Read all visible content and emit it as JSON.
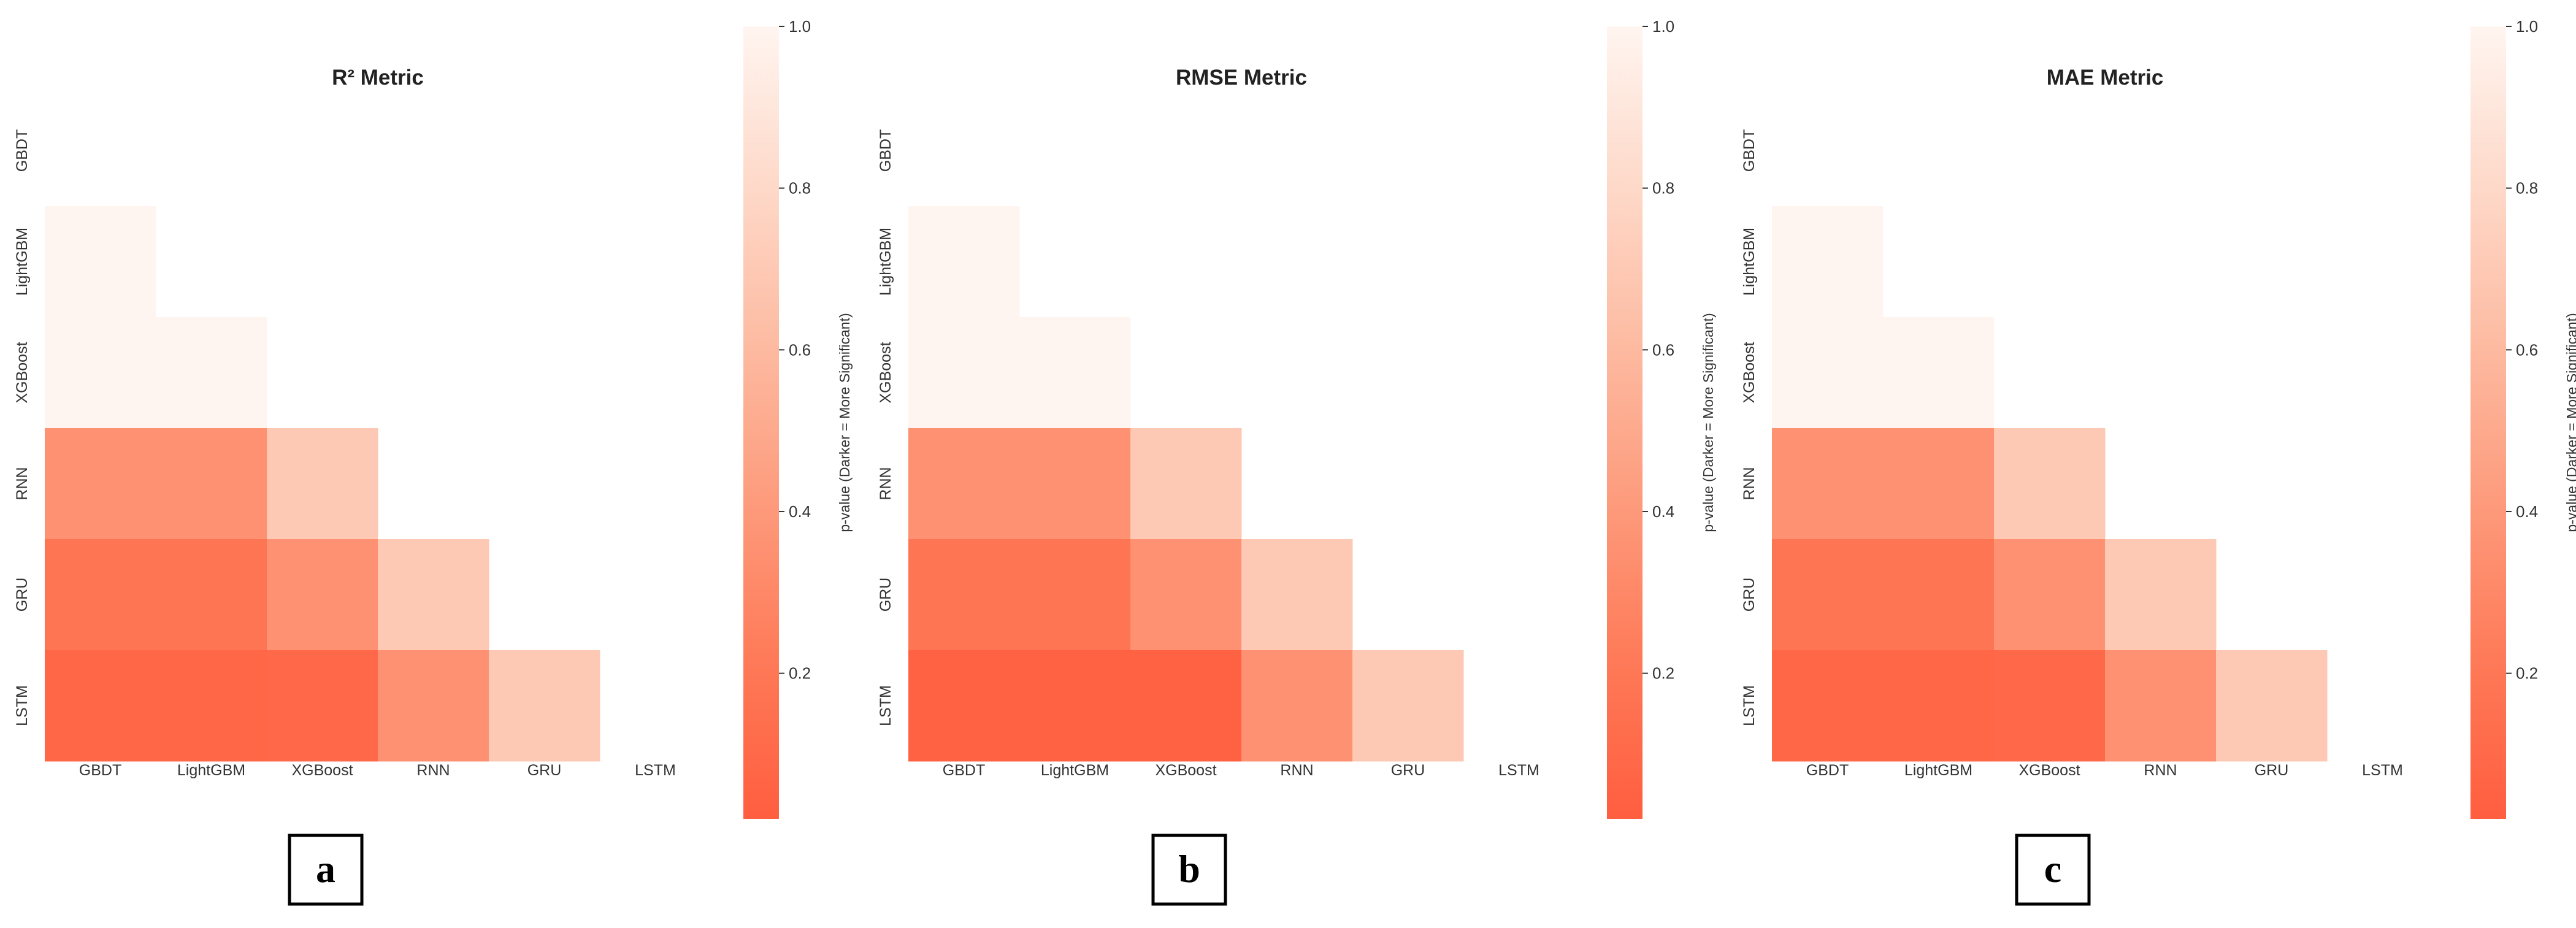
{
  "chart_data": [
    {
      "type": "heatmap",
      "title": "R² Metric",
      "panel_label": "a",
      "labels": [
        "GBDT",
        "LightGBM",
        "XGBoost",
        "RNN",
        "GRU",
        "LSTM"
      ],
      "mask": "upper-triangle-and-diagonal",
      "values": [
        [
          null,
          null,
          null,
          null,
          null,
          null
        ],
        [
          1.0,
          null,
          null,
          null,
          null,
          null
        ],
        [
          1.0,
          1.0,
          null,
          null,
          null,
          null
        ],
        [
          0.35,
          0.35,
          0.7,
          null,
          null,
          null
        ],
        [
          0.18,
          0.18,
          0.35,
          0.7,
          null,
          null
        ],
        [
          0.08,
          0.08,
          0.1,
          0.35,
          0.7,
          null
        ]
      ],
      "colorbar": {
        "label": "p-value (Darker = More Significant)",
        "range": [
          0.02,
          1.0
        ],
        "ticks": [
          0.2,
          0.4,
          0.6,
          0.8,
          1.0
        ],
        "cmap": "Reds_r"
      }
    },
    {
      "type": "heatmap",
      "title": "RMSE Metric",
      "panel_label": "b",
      "labels": [
        "GBDT",
        "LightGBM",
        "XGBoost",
        "RNN",
        "GRU",
        "LSTM"
      ],
      "mask": "upper-triangle-and-diagonal",
      "values": [
        [
          null,
          null,
          null,
          null,
          null,
          null
        ],
        [
          1.0,
          null,
          null,
          null,
          null,
          null
        ],
        [
          1.0,
          1.0,
          null,
          null,
          null,
          null
        ],
        [
          0.35,
          0.35,
          0.7,
          null,
          null,
          null
        ],
        [
          0.18,
          0.18,
          0.35,
          0.7,
          null,
          null
        ],
        [
          0.05,
          0.05,
          0.05,
          0.35,
          0.7,
          null
        ]
      ],
      "colorbar": {
        "label": "p-value (Darker = More Significant)",
        "range": [
          0.02,
          1.0
        ],
        "ticks": [
          0.2,
          0.4,
          0.6,
          0.8,
          1.0
        ],
        "cmap": "Reds_r"
      }
    },
    {
      "type": "heatmap",
      "title": "MAE Metric",
      "panel_label": "c",
      "labels": [
        "GBDT",
        "LightGBM",
        "XGBoost",
        "RNN",
        "GRU",
        "LSTM"
      ],
      "mask": "upper-triangle-and-diagonal",
      "values": [
        [
          null,
          null,
          null,
          null,
          null,
          null
        ],
        [
          1.0,
          null,
          null,
          null,
          null,
          null
        ],
        [
          1.0,
          1.0,
          null,
          null,
          null,
          null
        ],
        [
          0.35,
          0.35,
          0.7,
          null,
          null,
          null
        ],
        [
          0.18,
          0.18,
          0.35,
          0.7,
          null,
          null
        ],
        [
          0.08,
          0.08,
          0.1,
          0.35,
          0.7,
          null
        ]
      ],
      "colorbar": {
        "label": "p-value (Darker = More Significant)",
        "range": [
          0.02,
          1.0
        ],
        "ticks": [
          0.2,
          0.4,
          0.6,
          0.8,
          1.0
        ],
        "cmap": "Reds_r"
      }
    }
  ],
  "colors": {
    "low": "#ff5e3f",
    "high": "#fff5f0",
    "panel_label_border": "#000000"
  }
}
